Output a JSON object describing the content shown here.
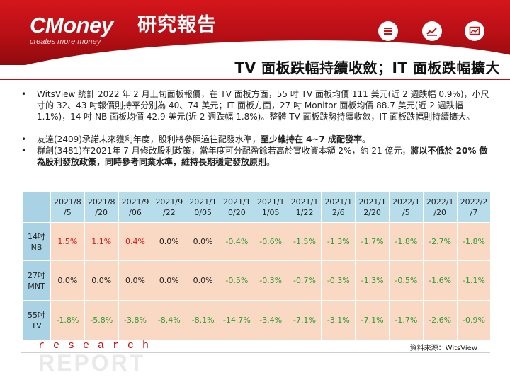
{
  "header": {
    "logo_text": "CMoney",
    "logo_zh": "研究報告",
    "tagline": "creates more money",
    "icons": [
      "list-icon",
      "trend-icon",
      "chart-icon"
    ]
  },
  "slide": {
    "title": "TV 面板跌幅持續收斂；IT 面板跌幅擴大"
  },
  "bullets": {
    "b1": "WitsView 統計 2022 年 2 月上旬面板報價，在 TV 面板方面，55 吋 TV 面板均價 111 美元(近 2 週跌幅 0.9%)，小尺寸的 32、43 吋報價則持平分別為 40、74 美元；IT 面板方面，27 吋 Monitor 面板均價 88.7 美元(近 2 週跌幅 1.1%)，14 吋 NB 面板均價 42.9 美元(近 2 週跌幅 1.8%)。整體 TV 面板跌勢持續收斂，IT 面板跌幅則持續擴大。",
    "b2_plain": "友達(2409)承諾未來獲利年度，股利將參照過往配發水準，",
    "b2_bold": "至少維持在 4~7 成配發率",
    "b2_end": "。",
    "b3_plain": "群創(3481)在2021年 7 月修改股利政策，當年度可分配盈餘若高於實收資本額 2%，約 21 億元，",
    "b3_bold": "將以不低於 20% 做為股利發放政策，同時參考同業水準，維持長期穩定發放原則",
    "b3_end": "。"
  },
  "table": {
    "columns": [
      "2021/8\n/5",
      "2021/8\n/20",
      "2021/9\n/06",
      "2021/9\n/22",
      "2021/1\n0/05",
      "2021/1\n0/20",
      "2021/1\n1/05",
      "2021/1\n1/22",
      "2021/1\n2/6",
      "2021/1\n2/20",
      "2022/1\n/5",
      "2022/1\n/20",
      "2022/2\n/7"
    ],
    "rows": [
      {
        "label": "14吋\nNB",
        "values": [
          "1.5%",
          "1.1%",
          "0.4%",
          "0.0%",
          "0.0%",
          "-0.4%",
          "-0.6%",
          "-1.5%",
          "-1.3%",
          "-1.7%",
          "-1.8%",
          "-2.7%",
          "-1.8%"
        ]
      },
      {
        "label": "27吋\nMNT",
        "values": [
          "0.0%",
          "0.0%",
          "0.0%",
          "0.0%",
          "0.0%",
          "-0.5%",
          "-0.3%",
          "-0.7%",
          "-0.3%",
          "-1.3%",
          "-0.5%",
          "-1.6%",
          "-1.1%"
        ]
      },
      {
        "label": "55吋\nTV",
        "values": [
          "-1.8%",
          "-5.8%",
          "-3.8%",
          "-8.4%",
          "-8.1%",
          "-14.7%",
          "-3.4%",
          "-7.1%",
          "-3.1%",
          "-7.1%",
          "-1.7%",
          "-2.6%",
          "-0.9%"
        ]
      }
    ],
    "colors": {
      "positive": "#d11a1a",
      "zero": "#222222",
      "negative": "#2e9b32"
    }
  },
  "footer": {
    "source": "資料來源：WitsView",
    "research": "research",
    "report": "REPORT"
  }
}
